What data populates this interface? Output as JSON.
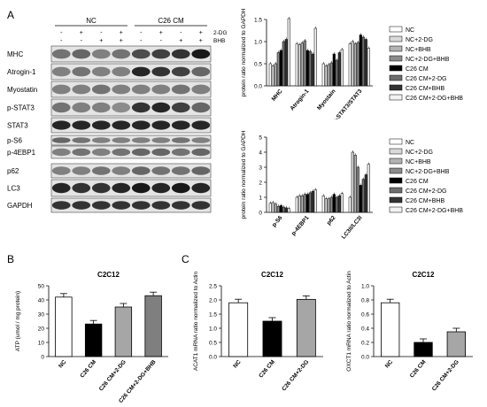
{
  "panel_labels": {
    "a": "A",
    "b": "B",
    "c": "C"
  },
  "blot": {
    "group_nc": "NC",
    "group_c26": "C26 CM",
    "treat_2dg": "2-DG",
    "treat_bhb": "BHB",
    "rows": [
      "MHC",
      "Atrogin-1",
      "Myostatin",
      "p-STAT3",
      "STAT3",
      "p-S6",
      "p-4EBP1",
      "p62",
      "LC3",
      "GAPDH"
    ],
    "sign_2dg": [
      "-",
      "+",
      "-",
      "+",
      "-",
      "+",
      "-",
      "+"
    ],
    "sign_bhb": [
      "-",
      "-",
      "+",
      "+",
      "-",
      "-",
      "+",
      "+"
    ]
  },
  "legend_items": [
    "NC",
    "NC+2-DG",
    "NC+BHB",
    "NC+2-DG+BHB",
    "C26 CM",
    "C26 CM+2-DG",
    "C26 CM+BHB",
    "C26 CM+2-DG+BHB"
  ],
  "colors": {
    "fills": [
      "#ffffff",
      "#d9d9d9",
      "#b3b3b3",
      "#8c8c8c",
      "#000000",
      "#6e6e6e",
      "#333333",
      "#f2f2f2"
    ],
    "gray": "#a6a6a6",
    "dark_gray": "#7f7f7f"
  },
  "chart_data": [
    {
      "type": "bar",
      "ylabel": "protein ratio normalized to GAPDH",
      "ylim": [
        0,
        1.5
      ],
      "yticks": [
        "0.0",
        "0.5",
        "1.0",
        "1.5"
      ],
      "categories": [
        "MHC",
        "Atrogin-1",
        "Myostain",
        "p-STAT3/STAT3"
      ],
      "series": [
        {
          "name": "NC",
          "values": [
            0.5,
            0.95,
            0.5,
            0.95
          ]
        },
        {
          "name": "NC+2-DG",
          "values": [
            0.45,
            0.93,
            0.45,
            1.0
          ]
        },
        {
          "name": "NC+BHB",
          "values": [
            0.5,
            0.97,
            0.48,
            0.95
          ]
        },
        {
          "name": "NC+2-DG+BHB",
          "values": [
            0.75,
            1.02,
            0.52,
            0.98
          ]
        },
        {
          "name": "C26 CM",
          "values": [
            0.8,
            0.8,
            0.72,
            1.15
          ]
        },
        {
          "name": "C26 CM+2-DG",
          "values": [
            1.0,
            0.78,
            0.58,
            1.1
          ]
        },
        {
          "name": "C26 CM+BHB",
          "values": [
            1.05,
            0.72,
            0.75,
            1.05
          ]
        },
        {
          "name": "C26 CM+2-DG+BHB",
          "values": [
            1.52,
            1.3,
            0.82,
            0.85
          ]
        }
      ]
    },
    {
      "type": "bar",
      "ylabel": "protein ratio normalized to GAPDH",
      "ylim": [
        0,
        5
      ],
      "yticks": [
        "0",
        "1",
        "2",
        "3",
        "4",
        "5"
      ],
      "categories": [
        "p-S6",
        "p-4EBP1",
        "p62",
        "LC3II/LC3I"
      ],
      "series": [
        {
          "name": "NC",
          "values": [
            0.6,
            1.0,
            1.1,
            1.0
          ]
        },
        {
          "name": "NC+2-DG",
          "values": [
            0.65,
            1.1,
            0.9,
            4.0
          ]
        },
        {
          "name": "NC+BHB",
          "values": [
            0.55,
            1.1,
            0.9,
            3.8
          ]
        },
        {
          "name": "NC+2-DG+BHB",
          "values": [
            0.4,
            1.2,
            1.0,
            3.0
          ]
        },
        {
          "name": "C26 CM",
          "values": [
            0.45,
            1.2,
            1.2,
            1.8
          ]
        },
        {
          "name": "C26 CM+2-DG",
          "values": [
            0.35,
            1.3,
            1.0,
            2.2
          ]
        },
        {
          "name": "C26 CM+BHB",
          "values": [
            0.3,
            1.4,
            1.1,
            2.5
          ]
        },
        {
          "name": "C26 CM+2-DG+BHB",
          "values": [
            0.25,
            1.5,
            1.25,
            3.2
          ]
        }
      ]
    },
    {
      "type": "bar",
      "title": "C2C12",
      "ylabel": "ATP (umol / mg protein)",
      "ylim": [
        0,
        50
      ],
      "yticks": [
        "0",
        "10",
        "20",
        "30",
        "40",
        "50"
      ],
      "categories": [
        "NC",
        "C26 CM",
        "C26 CM+2-DG",
        "C26 CM+2-DG+BHB"
      ],
      "values": [
        42,
        23,
        35,
        43
      ]
    },
    {
      "type": "bar",
      "title": "C2C12",
      "ylabel": "ACAT1 mRNA ratio normalized to Actin",
      "ylim": [
        0,
        2.5
      ],
      "yticks": [
        "0.0",
        "0.5",
        "1.0",
        "1.5",
        "2.0",
        "2.5"
      ],
      "categories": [
        "NC",
        "C26 CM",
        "C26 CM+2-DG"
      ],
      "values": [
        1.9,
        1.25,
        2.02
      ]
    },
    {
      "type": "bar",
      "title": "C2C12",
      "ylabel": "OXCT1 mRNA ratio normalized to Actin",
      "ylim": [
        0,
        1.0
      ],
      "yticks": [
        "0.0",
        "0.2",
        "0.4",
        "0.6",
        "0.8",
        "1.0"
      ],
      "categories": [
        "NC",
        "C26 CM",
        "C26 CM+2-DG"
      ],
      "values": [
        0.76,
        0.2,
        0.35
      ]
    }
  ]
}
